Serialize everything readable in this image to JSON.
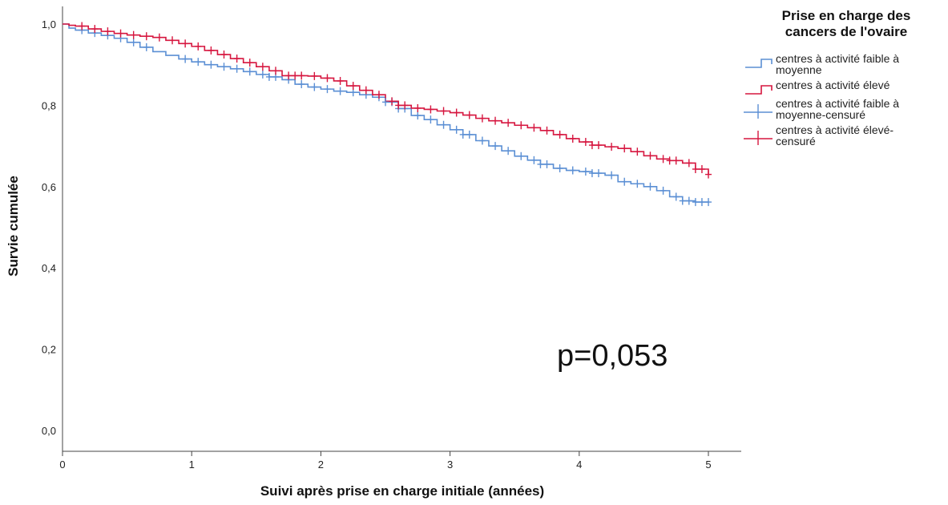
{
  "chart_data": {
    "type": "line",
    "step": true,
    "xlabel": "Suivi après prise en charge initiale (années)",
    "ylabel": "Survie cumulée",
    "xlim": [
      0,
      5
    ],
    "ylim": [
      0,
      1
    ],
    "x_ticks": [
      "0",
      "1",
      "2",
      "3",
      "4",
      "5"
    ],
    "y_ticks": [
      "0,0",
      "0,2",
      "0,4",
      "0,6",
      "0,8",
      "1,0"
    ],
    "grid": false,
    "legend_position": "top-right",
    "legend": {
      "title_lines": [
        "Prise en charge des",
        "cancers de l'ovaire"
      ],
      "entries": [
        {
          "lines": [
            "centres à activité faible à",
            "moyenne"
          ],
          "color": "#5b8fd4",
          "marker": "step"
        },
        {
          "lines": [
            "centres à activité élevé"
          ],
          "color": "#d6163f",
          "marker": "step"
        },
        {
          "lines": [
            "centres à activité faible à",
            "moyenne-censuré"
          ],
          "color": "#5b8fd4",
          "marker": "cross"
        },
        {
          "lines": [
            "centres à activité élevé-",
            "censuré"
          ],
          "color": "#d6163f",
          "marker": "cross"
        }
      ]
    },
    "annotation": "p=0,053",
    "series": [
      {
        "name": "centres à activité faible à moyenne",
        "color": "#5b8fd4",
        "x": [
          0,
          0.05,
          0.1,
          0.2,
          0.3,
          0.4,
          0.5,
          0.6,
          0.7,
          0.8,
          0.9,
          1.0,
          1.1,
          1.2,
          1.3,
          1.4,
          1.5,
          1.6,
          1.7,
          1.8,
          1.9,
          2.0,
          2.1,
          2.2,
          2.3,
          2.4,
          2.5,
          2.6,
          2.7,
          2.8,
          2.9,
          3.0,
          3.1,
          3.2,
          3.3,
          3.4,
          3.5,
          3.6,
          3.7,
          3.8,
          3.9,
          4.0,
          4.1,
          4.2,
          4.3,
          4.4,
          4.5,
          4.6,
          4.7,
          4.8,
          4.9,
          5.0
        ],
        "y": [
          1.0,
          0.99,
          0.985,
          0.978,
          0.972,
          0.965,
          0.955,
          0.943,
          0.932,
          0.923,
          0.914,
          0.907,
          0.9,
          0.895,
          0.89,
          0.883,
          0.876,
          0.87,
          0.863,
          0.852,
          0.845,
          0.84,
          0.835,
          0.832,
          0.826,
          0.82,
          0.808,
          0.792,
          0.775,
          0.765,
          0.752,
          0.74,
          0.728,
          0.713,
          0.7,
          0.688,
          0.675,
          0.665,
          0.655,
          0.645,
          0.64,
          0.637,
          0.633,
          0.628,
          0.612,
          0.607,
          0.6,
          0.59,
          0.575,
          0.565,
          0.562,
          0.562
        ]
      },
      {
        "name": "centres à activité élevé",
        "color": "#d6163f",
        "x": [
          0,
          0.05,
          0.1,
          0.2,
          0.3,
          0.4,
          0.5,
          0.6,
          0.7,
          0.8,
          0.9,
          1.0,
          1.1,
          1.2,
          1.3,
          1.4,
          1.5,
          1.6,
          1.7,
          1.8,
          1.9,
          2.0,
          2.1,
          2.2,
          2.3,
          2.4,
          2.5,
          2.6,
          2.7,
          2.8,
          2.9,
          3.0,
          3.1,
          3.2,
          3.3,
          3.4,
          3.5,
          3.6,
          3.7,
          3.8,
          3.9,
          4.0,
          4.1,
          4.2,
          4.3,
          4.4,
          4.5,
          4.6,
          4.7,
          4.8,
          4.9,
          5.0
        ],
        "y": [
          1.0,
          0.997,
          0.995,
          0.988,
          0.982,
          0.977,
          0.973,
          0.97,
          0.967,
          0.96,
          0.952,
          0.945,
          0.935,
          0.925,
          0.915,
          0.905,
          0.895,
          0.885,
          0.873,
          0.873,
          0.872,
          0.867,
          0.86,
          0.848,
          0.837,
          0.826,
          0.81,
          0.8,
          0.793,
          0.79,
          0.786,
          0.782,
          0.776,
          0.768,
          0.762,
          0.757,
          0.751,
          0.745,
          0.738,
          0.728,
          0.718,
          0.71,
          0.702,
          0.698,
          0.694,
          0.686,
          0.676,
          0.668,
          0.664,
          0.658,
          0.643,
          0.63
        ]
      }
    ],
    "censor_points": [
      {
        "series": 0,
        "x": [
          0.15,
          0.25,
          0.35,
          0.45,
          0.55,
          0.65,
          0.95,
          1.05,
          1.15,
          1.25,
          1.35,
          1.45,
          1.55,
          1.6,
          1.65,
          1.75,
          1.85,
          1.95,
          2.05,
          2.15,
          2.25,
          2.35,
          2.45,
          2.5,
          2.55,
          2.6,
          2.65,
          2.75,
          2.85,
          2.95,
          3.05,
          3.1,
          3.15,
          3.25,
          3.35,
          3.45,
          3.55,
          3.65,
          3.7,
          3.75,
          3.85,
          3.95,
          4.05,
          4.1,
          4.15,
          4.25,
          4.35,
          4.45,
          4.55,
          4.65,
          4.75,
          4.8,
          4.85,
          4.9,
          4.95,
          5.0
        ]
      },
      {
        "series": 1,
        "x": [
          0.15,
          0.25,
          0.35,
          0.45,
          0.55,
          0.65,
          0.75,
          0.85,
          0.95,
          1.05,
          1.15,
          1.25,
          1.35,
          1.45,
          1.55,
          1.65,
          1.75,
          1.8,
          1.85,
          1.95,
          2.05,
          2.15,
          2.25,
          2.35,
          2.45,
          2.55,
          2.6,
          2.65,
          2.75,
          2.85,
          2.95,
          3.05,
          3.15,
          3.25,
          3.35,
          3.45,
          3.55,
          3.65,
          3.75,
          3.85,
          3.95,
          4.05,
          4.1,
          4.15,
          4.25,
          4.35,
          4.45,
          4.55,
          4.65,
          4.7,
          4.75,
          4.85,
          4.9,
          4.95,
          5.0
        ]
      }
    ]
  }
}
